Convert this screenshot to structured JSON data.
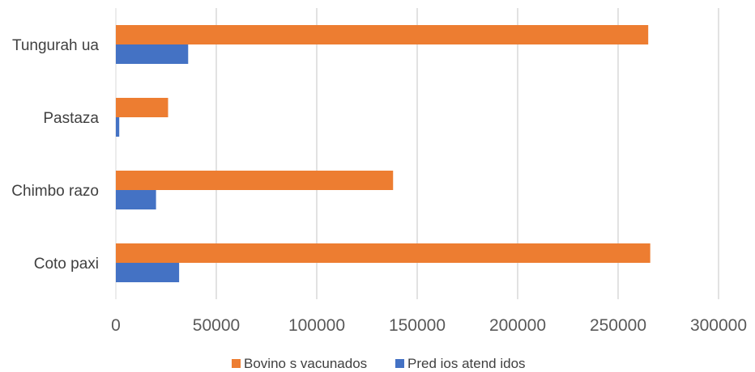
{
  "chart_data": {
    "type": "bar",
    "orientation": "horizontal",
    "categories": [
      "Tungurah ua",
      "Pastaza",
      "Chimbo razo",
      "Coto paxi"
    ],
    "series": [
      {
        "name": "Bovino s vacunados",
        "color": "#ED7D31",
        "values": [
          265000,
          26000,
          138000,
          266000
        ]
      },
      {
        "name": "Pred ios atend idos",
        "color": "#4472C4",
        "values": [
          36000,
          1700,
          20000,
          31500
        ]
      }
    ],
    "xlim": [
      0,
      300000
    ],
    "xticks": [
      "0",
      "50000",
      "100000",
      "150000",
      "200000",
      "250000",
      "300000"
    ],
    "xtick_values": [
      0,
      50000,
      100000,
      150000,
      200000,
      250000,
      300000
    ],
    "grid": true,
    "legend_position": "bottom"
  }
}
